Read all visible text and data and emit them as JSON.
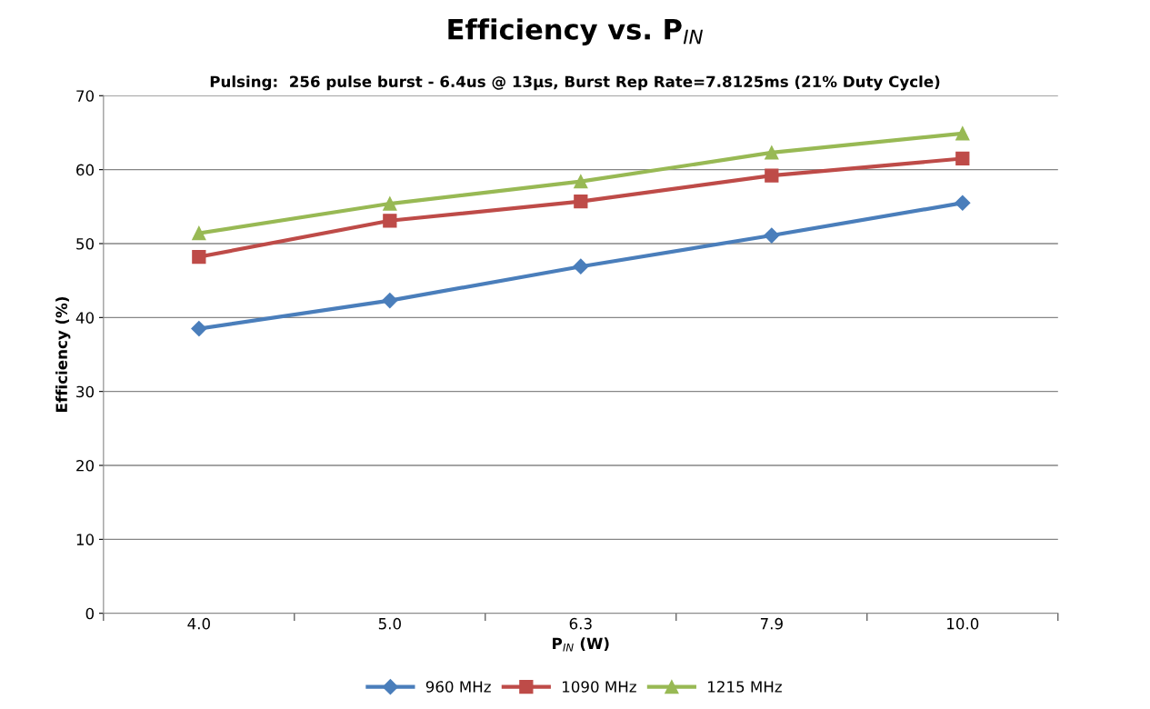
{
  "chart_data": {
    "type": "line",
    "title": "Efficiency vs. P$_{IN}$",
    "subtitle": "Pulsing:  256 pulse burst - 6.4us @ 13µs, Burst Rep Rate=7.8125ms (21% Duty Cycle)",
    "xlabel": "P$_{IN}$ (W)",
    "ylabel": "Efficiency (%)",
    "categories": [
      "4.0",
      "5.0",
      "6.3",
      "7.9",
      "10.0"
    ],
    "series": [
      {
        "name": "960 MHz",
        "color": "#4a7ebb",
        "marker": "diamond",
        "values": [
          38.5,
          42.3,
          46.9,
          51.1,
          55.5
        ]
      },
      {
        "name": "1090 MHz",
        "color": "#be4b48",
        "marker": "square",
        "values": [
          48.2,
          53.1,
          55.7,
          59.2,
          61.5
        ]
      },
      {
        "name": "1215 MHz",
        "color": "#98b954",
        "marker": "triangle",
        "values": [
          51.4,
          55.4,
          58.4,
          62.3,
          64.9
        ]
      }
    ],
    "ylim": [
      0,
      70
    ],
    "yticks": [
      0,
      10,
      20,
      30,
      40,
      50,
      60,
      70
    ],
    "grid": "y",
    "legend": "bottom",
    "line_style": "solid"
  }
}
